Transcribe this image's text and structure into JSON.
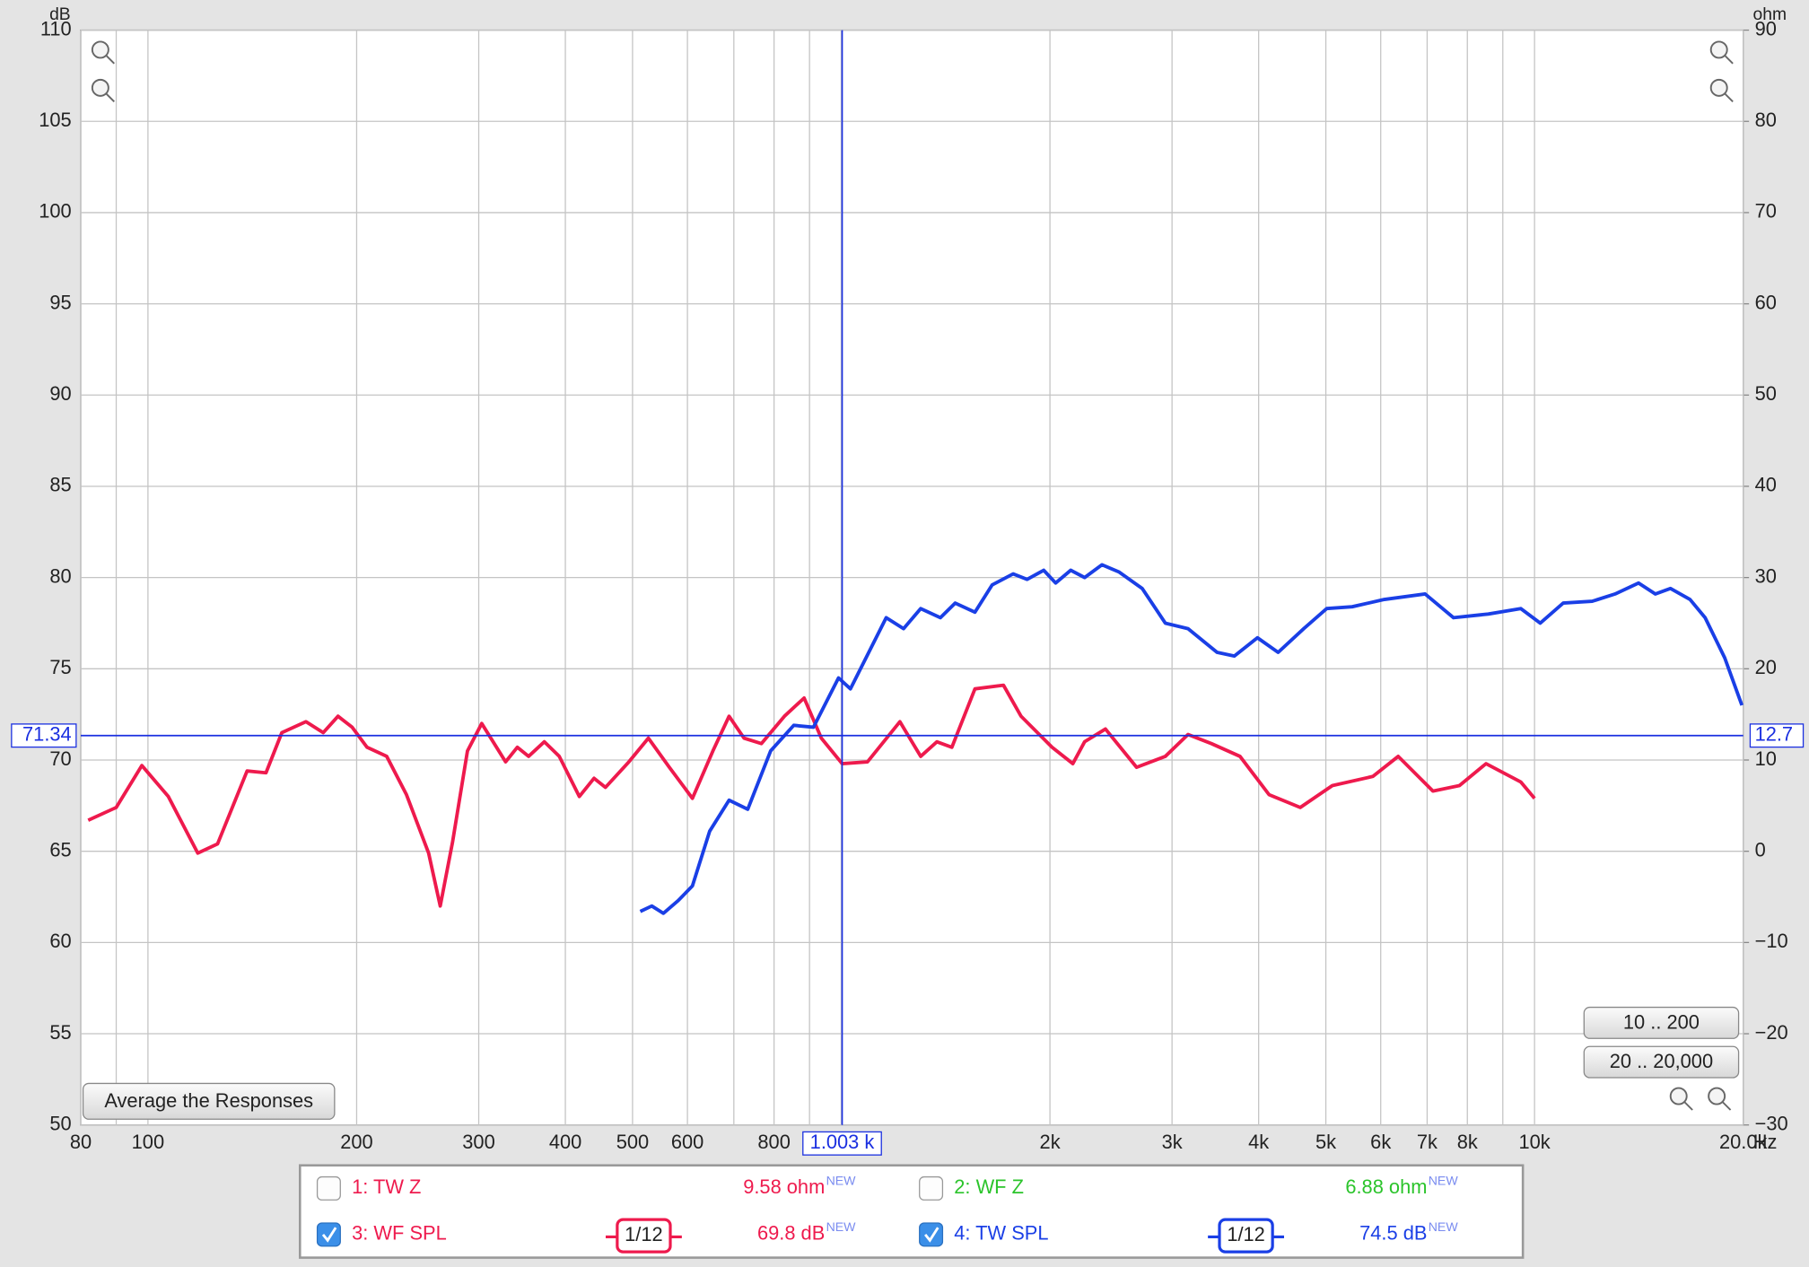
{
  "chart_data": {
    "type": "line",
    "y_label": "dB",
    "y2_label": "ohm",
    "x_unit": "Hz",
    "xscale": "log",
    "xlim": [
      80,
      20000
    ],
    "xticks": [
      80,
      100,
      200,
      300,
      400,
      500,
      600,
      800,
      {
        "value": 2000,
        "label": "2k"
      },
      {
        "value": 3000,
        "label": "3k"
      },
      {
        "value": 4000,
        "label": "4k"
      },
      {
        "value": 5000,
        "label": "5k"
      },
      {
        "value": 6000,
        "label": "6k"
      },
      {
        "value": 7000,
        "label": "7k"
      },
      {
        "value": 8000,
        "label": "8k"
      },
      {
        "value": 10000,
        "label": "10k"
      },
      {
        "value": 20000,
        "label": "20.0k"
      }
    ],
    "xgrid_minor": [
      90,
      700,
      900,
      1000,
      9000
    ],
    "ylim": [
      50,
      110
    ],
    "yticks": [
      50,
      55,
      60,
      65,
      70,
      75,
      80,
      85,
      90,
      95,
      100,
      105,
      110
    ],
    "y2lim": [
      -30,
      90
    ],
    "y2ticks": [
      {
        "value": -30,
        "label": "−30"
      },
      {
        "value": -20,
        "label": "−20"
      },
      {
        "value": -10,
        "label": "−10"
      },
      0,
      10,
      20,
      30,
      40,
      50,
      60,
      70,
      80,
      90
    ],
    "grid": true,
    "cursor": {
      "x": {
        "value": 1003,
        "label": "1.003 k"
      },
      "y": 71.34,
      "y2": 12.7,
      "color": "#1a2fe0"
    },
    "series": [
      {
        "name": "WF SPL",
        "color": "#ee1a4d",
        "x": [
          82,
          90,
          98,
          107,
          118,
          126,
          139,
          148,
          156,
          169,
          179,
          188,
          197,
          207,
          221,
          236,
          254,
          264,
          275,
          289,
          303,
          328,
          341,
          354,
          373,
          392,
          419,
          440,
          457,
          494,
          527,
          565,
          610,
          653,
          689,
          724,
          767,
          828,
          884,
          936,
          1003,
          1091,
          1215,
          1302,
          1374,
          1444,
          1559,
          1714,
          1817,
          2014,
          2158,
          2244,
          2405,
          2667,
          2934,
          3164,
          3419,
          3760,
          4141,
          4593,
          5109,
          5846,
          6359,
          7136,
          7792,
          8512,
          9552,
          10000
        ],
        "values": [
          66.7,
          67.4,
          69.7,
          68.0,
          64.9,
          65.4,
          69.4,
          69.3,
          71.5,
          72.1,
          71.5,
          72.4,
          71.8,
          70.7,
          70.2,
          68.1,
          64.9,
          62.0,
          65.5,
          70.5,
          72.0,
          69.9,
          70.7,
          70.2,
          71.0,
          70.2,
          68.0,
          69.0,
          68.5,
          69.9,
          71.2,
          69.6,
          67.9,
          70.5,
          72.4,
          71.2,
          70.9,
          72.4,
          73.4,
          71.2,
          69.8,
          69.9,
          72.1,
          70.2,
          71.0,
          70.7,
          73.9,
          74.1,
          72.4,
          70.7,
          69.8,
          71.0,
          71.7,
          69.6,
          70.2,
          71.4,
          70.9,
          70.2,
          68.1,
          67.4,
          68.6,
          69.1,
          70.2,
          68.3,
          68.6,
          69.8,
          68.8,
          67.9
        ]
      },
      {
        "name": "TW SPL",
        "color": "#1a3fe6",
        "x": [
          513,
          533,
          554,
          582,
          610,
          646,
          689,
          733,
          791,
          854,
          912,
          991,
          1031,
          1161,
          1230,
          1302,
          1390,
          1460,
          1559,
          1651,
          1770,
          1854,
          1959,
          2038,
          2143,
          2244,
          2377,
          2517,
          2717,
          2934,
          3164,
          3484,
          3690,
          3984,
          4268,
          4647,
          5015,
          5457,
          6073,
          6953,
          7640,
          8575,
          9552,
          10192,
          11000,
          12112,
          13066,
          14126,
          14939,
          15706,
          16760,
          17622,
          18807,
          19912
        ],
        "values": [
          61.7,
          62.0,
          61.6,
          62.3,
          63.1,
          66.1,
          67.8,
          67.3,
          70.5,
          71.9,
          71.8,
          74.5,
          73.9,
          77.8,
          77.2,
          78.3,
          77.8,
          78.6,
          78.1,
          79.6,
          80.2,
          79.9,
          80.4,
          79.7,
          80.4,
          80.0,
          80.7,
          80.3,
          79.4,
          77.5,
          77.2,
          75.9,
          75.7,
          76.7,
          75.9,
          77.2,
          78.3,
          78.4,
          78.8,
          79.1,
          77.8,
          78.0,
          78.3,
          77.5,
          78.6,
          78.7,
          79.1,
          79.7,
          79.1,
          79.4,
          78.8,
          77.8,
          75.6,
          73.0
        ]
      }
    ]
  },
  "controls": {
    "range_low": "10 .. 200",
    "range_full": "20 .. 20,000",
    "average": "Average the Responses"
  },
  "legend_panel": [
    {
      "label": "1: TW Z",
      "color": "#ee1a4d",
      "checked": false,
      "readout": "9.58 ohm",
      "badge": "NEW"
    },
    {
      "label": "2: WF Z",
      "color": "#2bc42b",
      "checked": false,
      "readout": "6.88 ohm",
      "badge": "NEW"
    },
    {
      "label": "3: WF SPL",
      "color": "#ee1a4d",
      "checked": true,
      "smoothing": "1/12",
      "readout": "69.8 dB",
      "badge": "NEW"
    },
    {
      "label": "4: TW SPL",
      "color": "#1a3fe6",
      "checked": true,
      "smoothing": "1/12",
      "readout": "74.5 dB",
      "badge": "NEW"
    }
  ]
}
